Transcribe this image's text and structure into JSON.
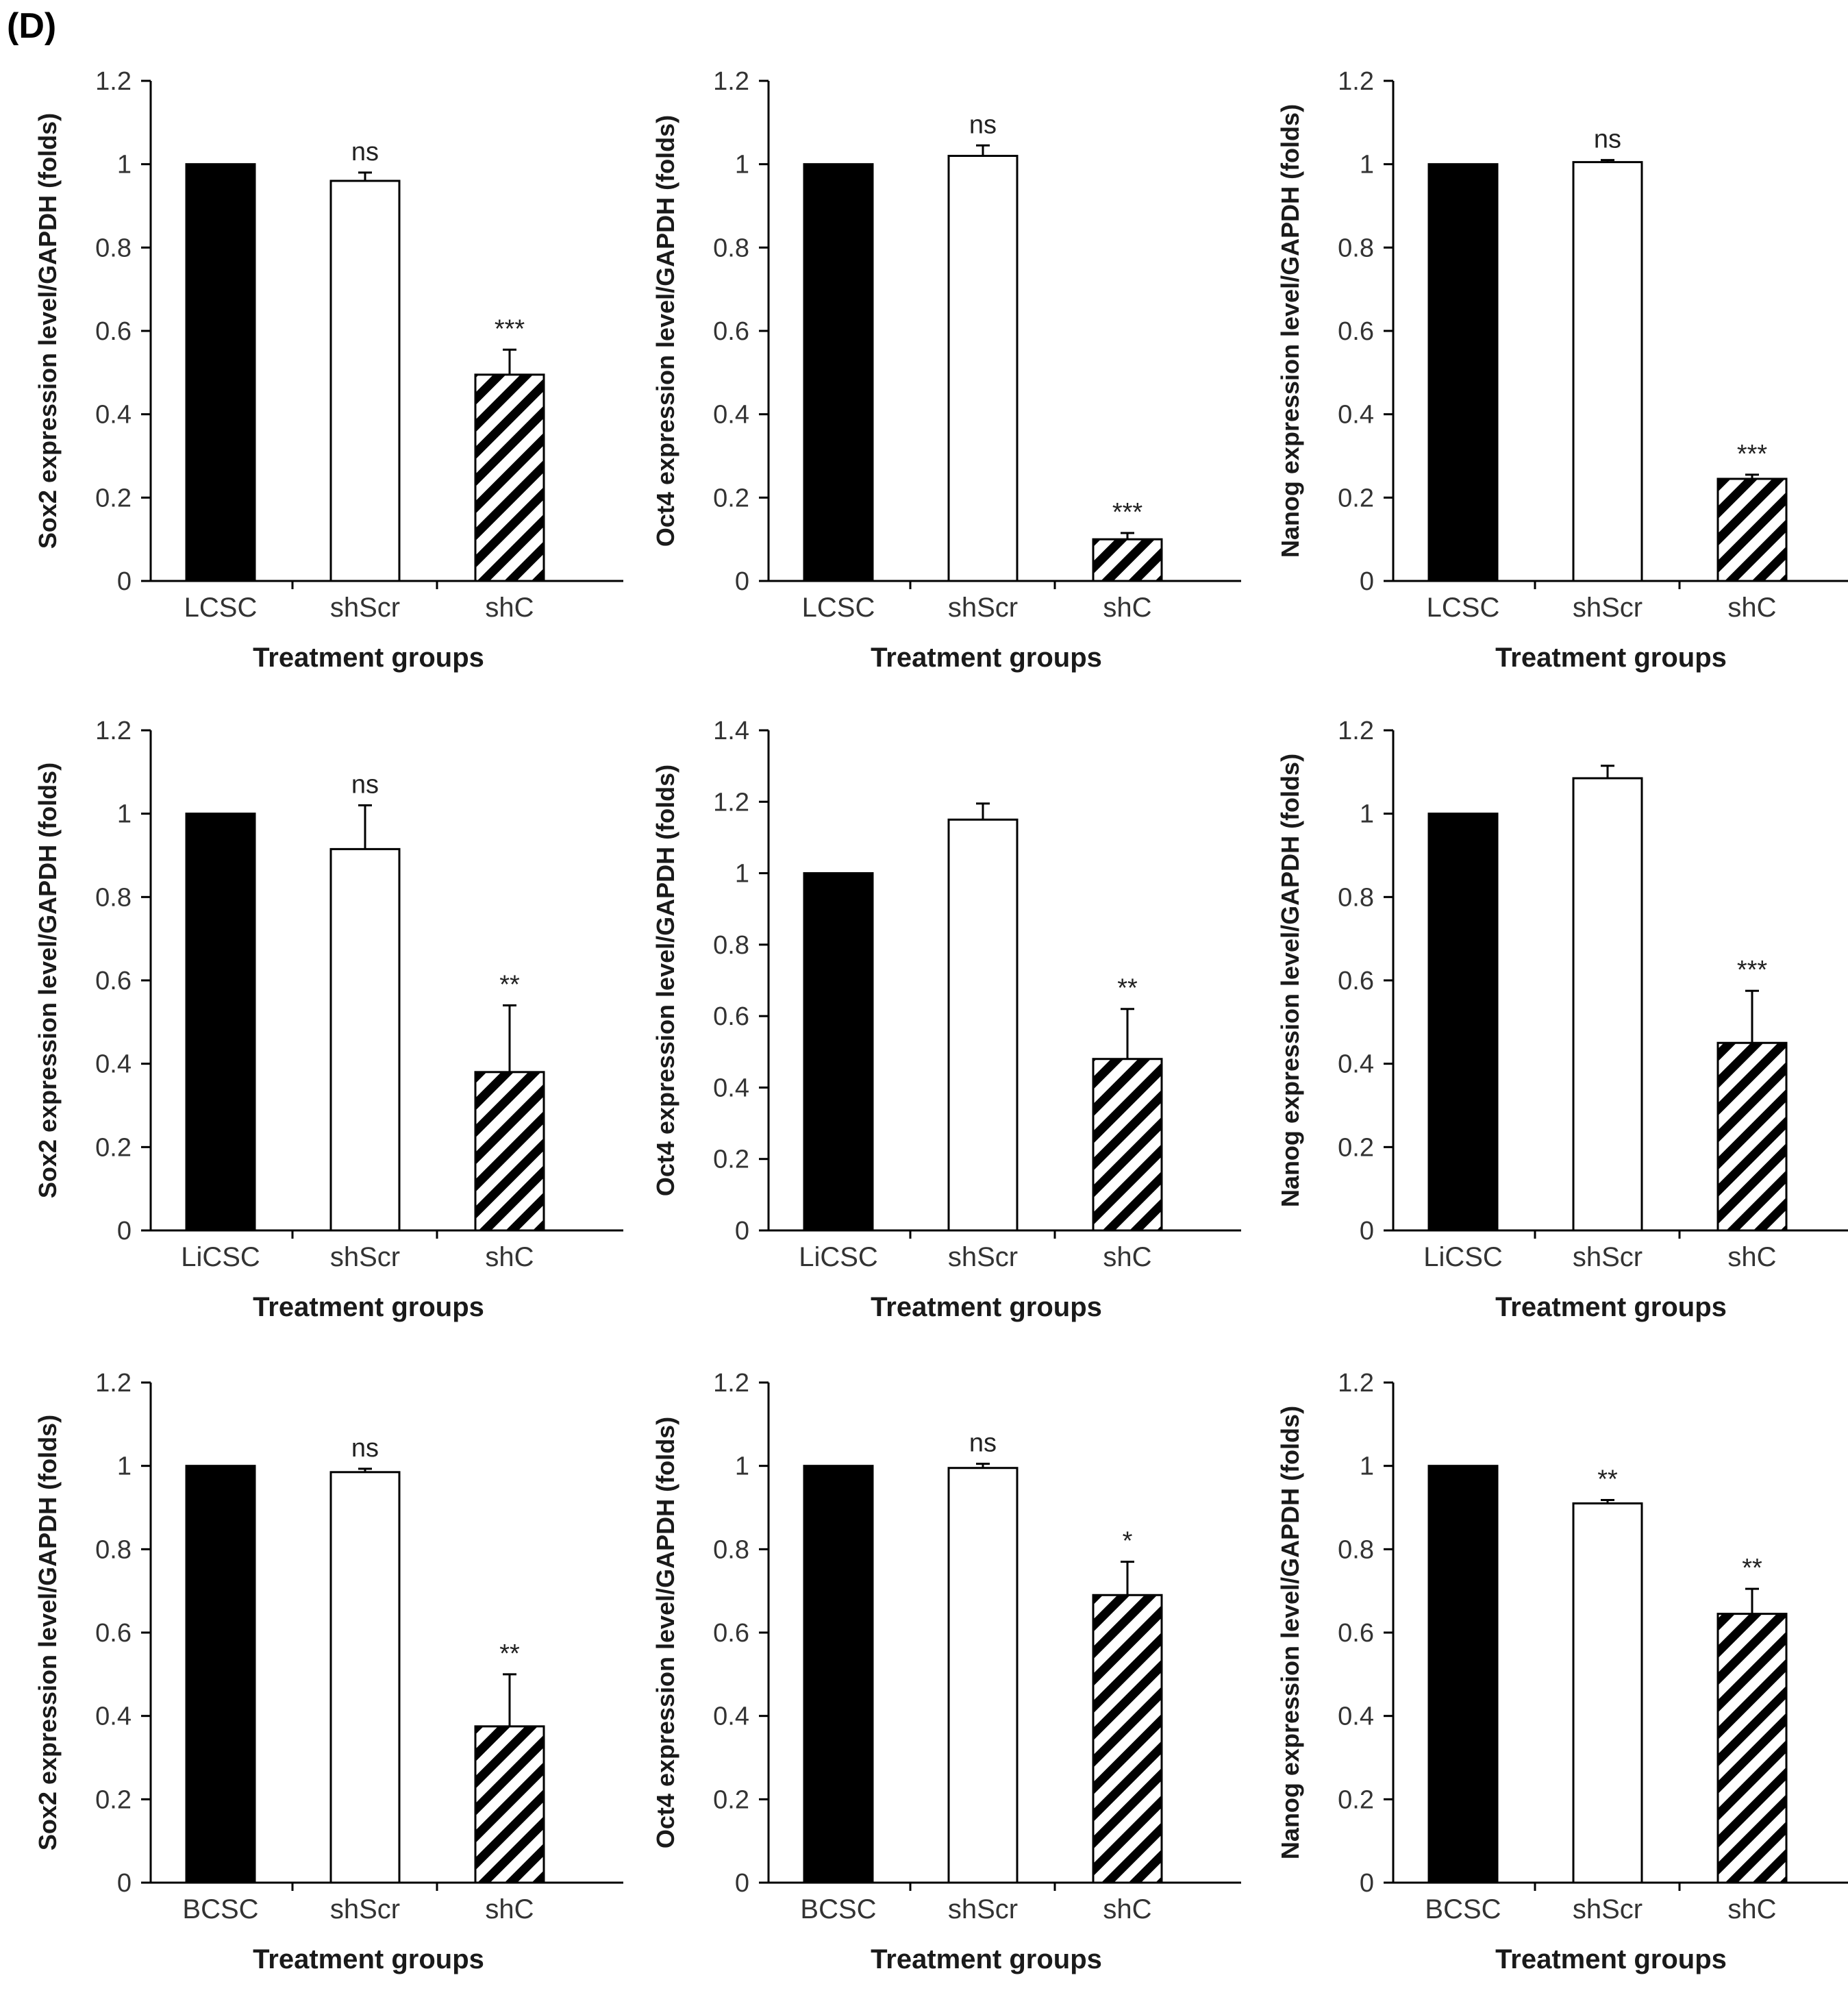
{
  "panel_label": "(D)",
  "colors": {
    "LCSC_bar": "#000000",
    "shScr_bar": "#ffffff",
    "shC_bar": "hatched-black",
    "axis": "#000000",
    "text": "#333333"
  },
  "chart_data": [
    {
      "type": "bar",
      "title": "",
      "xlabel": "Treatment groups",
      "ylabel": "Sox2 expression level/GAPDH  (folds)",
      "ylim": [
        0,
        1.2
      ],
      "yticks": [
        "0",
        "0.2",
        "0.4",
        "0.6",
        "0.8",
        "1",
        "1.2"
      ],
      "categories": [
        "LCSC",
        "shScr",
        "shC"
      ],
      "values": [
        1.0,
        0.96,
        0.495
      ],
      "errors": [
        0,
        0.02,
        0.06
      ],
      "annotations": [
        "",
        "ns",
        "***"
      ]
    },
    {
      "type": "bar",
      "title": "",
      "xlabel": "Treatment groups",
      "ylabel": "Oct4 expression level/GAPDH  (folds)",
      "ylim": [
        0,
        1.2
      ],
      "yticks": [
        "0",
        "0.2",
        "0.4",
        "0.6",
        "0.8",
        "1",
        "1.2"
      ],
      "categories": [
        "LCSC",
        "shScr",
        "shC"
      ],
      "values": [
        1.0,
        1.02,
        0.1
      ],
      "errors": [
        0,
        0.025,
        0.015
      ],
      "annotations": [
        "",
        "ns",
        "***"
      ]
    },
    {
      "type": "bar",
      "title": "",
      "xlabel": "Treatment groups",
      "ylabel": "Nanog expression level/GAPDH  (folds)",
      "ylim": [
        0,
        1.2
      ],
      "yticks": [
        "0",
        "0.2",
        "0.4",
        "0.6",
        "0.8",
        "1",
        "1.2"
      ],
      "categories": [
        "LCSC",
        "shScr",
        "shC"
      ],
      "values": [
        1.0,
        1.005,
        0.245
      ],
      "errors": [
        0,
        0.005,
        0.01
      ],
      "annotations": [
        "",
        "ns",
        "***"
      ]
    },
    {
      "type": "bar",
      "title": "",
      "xlabel": "Treatment groups",
      "ylabel": "Sox2 expression level/GAPDH  (folds)",
      "ylim": [
        0,
        1.2
      ],
      "yticks": [
        "0",
        "0.2",
        "0.4",
        "0.6",
        "0.8",
        "1",
        "1.2"
      ],
      "categories": [
        "LiCSC",
        "shScr",
        "shC"
      ],
      "values": [
        1.0,
        0.915,
        0.38
      ],
      "errors": [
        0,
        0.105,
        0.16
      ],
      "annotations": [
        "",
        "ns",
        "**"
      ]
    },
    {
      "type": "bar",
      "title": "",
      "xlabel": "Treatment groups",
      "ylabel": "Oct4 expression level/GAPDH  (folds)",
      "ylim": [
        0,
        1.4
      ],
      "yticks": [
        "0",
        "0.2",
        "0.4",
        "0.6",
        "0.8",
        "1",
        "1.2",
        "1.4"
      ],
      "categories": [
        "LiCSC",
        "shScr",
        "shC"
      ],
      "values": [
        1.0,
        1.15,
        0.48
      ],
      "errors": [
        0,
        0.045,
        0.14
      ],
      "annotations": [
        "",
        "",
        "**"
      ]
    },
    {
      "type": "bar",
      "title": "",
      "xlabel": "Treatment groups",
      "ylabel": "Nanog expression level/GAPDH  (folds)",
      "ylim": [
        0,
        1.2
      ],
      "yticks": [
        "0",
        "0.2",
        "0.4",
        "0.6",
        "0.8",
        "1",
        "1.2"
      ],
      "categories": [
        "LiCSC",
        "shScr",
        "shC"
      ],
      "values": [
        1.0,
        1.085,
        0.45
      ],
      "errors": [
        0,
        0.03,
        0.125
      ],
      "annotations": [
        "",
        "",
        "***"
      ]
    },
    {
      "type": "bar",
      "title": "",
      "xlabel": "Treatment groups",
      "ylabel": "Sox2 expression level/GAPDH  (folds)",
      "ylim": [
        0,
        1.2
      ],
      "yticks": [
        "0",
        "0.2",
        "0.4",
        "0.6",
        "0.8",
        "1",
        "1.2"
      ],
      "categories": [
        "BCSC",
        "shScr",
        "shC"
      ],
      "values": [
        1.0,
        0.985,
        0.375
      ],
      "errors": [
        0,
        0.008,
        0.125
      ],
      "annotations": [
        "",
        "ns",
        "**"
      ]
    },
    {
      "type": "bar",
      "title": "",
      "xlabel": "Treatment groups",
      "ylabel": "Oct4 expression level/GAPDH  (folds)",
      "ylim": [
        0,
        1.2
      ],
      "yticks": [
        "0",
        "0.2",
        "0.4",
        "0.6",
        "0.8",
        "1",
        "1.2"
      ],
      "categories": [
        "BCSC",
        "shScr",
        "shC"
      ],
      "values": [
        1.0,
        0.995,
        0.69
      ],
      "errors": [
        0,
        0.01,
        0.08
      ],
      "annotations": [
        "",
        "ns",
        "*"
      ]
    },
    {
      "type": "bar",
      "title": "",
      "xlabel": "Treatment groups",
      "ylabel": "Nanog expression level/GAPDH  (folds)",
      "ylim": [
        0,
        1.2
      ],
      "yticks": [
        "0",
        "0.2",
        "0.4",
        "0.6",
        "0.8",
        "1",
        "1.2"
      ],
      "categories": [
        "BCSC",
        "shScr",
        "shC"
      ],
      "values": [
        1.0,
        0.91,
        0.645
      ],
      "errors": [
        0,
        0.008,
        0.06
      ],
      "annotations": [
        "",
        "**",
        "**"
      ]
    }
  ]
}
